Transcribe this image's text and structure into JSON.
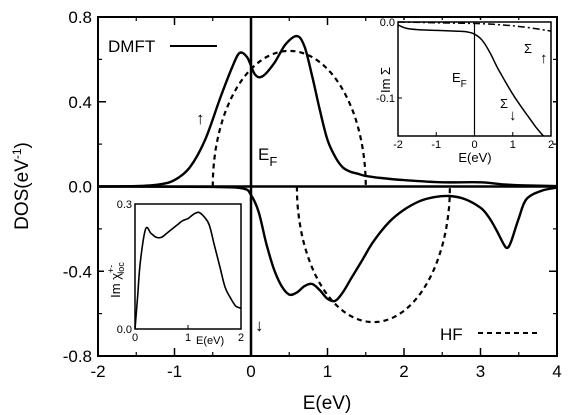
{
  "chart_data": {
    "type": "line",
    "xlabel": "E(eV)",
    "ylabel": "DOS(eV",
    "ylabel_sup": "-1",
    "ylabel_close": ")",
    "xlim": [
      -2,
      4
    ],
    "ylim": [
      -0.8,
      0.8
    ],
    "xticks": [
      "-2",
      "-1",
      "0",
      "1",
      "2",
      "3",
      "4"
    ],
    "yticks": [
      "-0.8",
      "-0.4",
      "0.0",
      "0.4",
      "0.8"
    ],
    "fermi_label": "E",
    "fermi_sub": "F",
    "legend": [
      {
        "label": "DMFT",
        "style": "solid"
      },
      {
        "label": "HF",
        "style": "dashed"
      }
    ],
    "spin_up_arrow": "↑",
    "spin_down_arrow": "↓",
    "series": [
      {
        "name": "DMFT",
        "spin": "up",
        "x": [
          -2.0,
          -1.5,
          -1.2,
          -1.0,
          -0.8,
          -0.6,
          -0.4,
          -0.25,
          -0.15,
          -0.05,
          0.05,
          0.15,
          0.3,
          0.45,
          0.6,
          0.7,
          0.8,
          0.9,
          1.0,
          1.1,
          1.2,
          1.3,
          1.4,
          1.5,
          1.7,
          2.0,
          2.5,
          3.0,
          3.3,
          3.6,
          4.0
        ],
        "y": [
          0.0,
          0.002,
          0.01,
          0.03,
          0.09,
          0.22,
          0.42,
          0.56,
          0.63,
          0.61,
          0.53,
          0.52,
          0.58,
          0.67,
          0.71,
          0.66,
          0.52,
          0.36,
          0.22,
          0.14,
          0.09,
          0.07,
          0.06,
          0.05,
          0.04,
          0.03,
          0.02,
          0.02,
          0.01,
          0.005,
          0.002
        ]
      },
      {
        "name": "DMFT",
        "spin": "down",
        "x": [
          -2.0,
          -0.5,
          -0.1,
          0.0,
          0.1,
          0.2,
          0.3,
          0.4,
          0.5,
          0.6,
          0.7,
          0.8,
          0.9,
          1.0,
          1.1,
          1.2,
          1.3,
          1.45,
          1.6,
          1.8,
          2.0,
          2.2,
          2.4,
          2.6,
          2.8,
          3.0,
          3.1,
          3.2,
          3.3,
          3.35,
          3.4,
          3.5,
          3.6,
          3.8,
          4.0
        ],
        "y": [
          0.0,
          -0.002,
          -0.01,
          -0.04,
          -0.12,
          -0.27,
          -0.39,
          -0.47,
          -0.51,
          -0.5,
          -0.47,
          -0.46,
          -0.49,
          -0.53,
          -0.54,
          -0.5,
          -0.44,
          -0.35,
          -0.26,
          -0.17,
          -0.11,
          -0.07,
          -0.05,
          -0.045,
          -0.06,
          -0.1,
          -0.14,
          -0.2,
          -0.27,
          -0.29,
          -0.26,
          -0.15,
          -0.06,
          -0.02,
          -0.005
        ]
      },
      {
        "name": "HF",
        "spin": "up",
        "shape": "semi-ellipse",
        "center": 0.5,
        "halfwidth": 1.0,
        "height": 0.64
      },
      {
        "name": "HF",
        "spin": "down",
        "shape": "semi-ellipse",
        "center": 1.6,
        "halfwidth": 1.0,
        "height": -0.64
      }
    ],
    "inset_sigma": {
      "type": "line",
      "ylabel": "Im Σ",
      "xlabel": "E(eV)",
      "xlim": [
        -2,
        2
      ],
      "ylim": [
        -0.15,
        0.0
      ],
      "xticks": [
        "-2",
        "-1",
        "0",
        "1",
        "2"
      ],
      "yticks": [
        "0.0",
        "-0.1"
      ],
      "fermi_label": "E",
      "fermi_sub": "F",
      "label_up": "Σ",
      "label_up_arrow": "↑",
      "label_down": "Σ",
      "label_down_arrow": "↓",
      "series": [
        {
          "name": "Σ↑",
          "style": "dash-dot",
          "x": [
            -2.0,
            -1.0,
            0.0,
            0.5,
            1.0,
            1.5,
            2.0
          ],
          "y": [
            0.0,
            -0.001,
            -0.002,
            -0.003,
            -0.005,
            -0.008,
            -0.012
          ]
        },
        {
          "name": "Σ↓",
          "style": "solid",
          "x": [
            -2.0,
            -1.8,
            -1.5,
            -1.0,
            -0.5,
            -0.2,
            0.0,
            0.2,
            0.4,
            0.6,
            0.8,
            1.0,
            1.2,
            1.4,
            1.6,
            1.8
          ],
          "y": [
            -0.004,
            -0.008,
            -0.01,
            -0.011,
            -0.012,
            -0.013,
            -0.016,
            -0.024,
            -0.04,
            -0.06,
            -0.078,
            -0.095,
            -0.11,
            -0.124,
            -0.138,
            -0.15
          ]
        }
      ]
    },
    "inset_chi": {
      "type": "line",
      "ylabel": "Im χ",
      "ylabel_sup": "+-",
      "ylabel_sub": "loc",
      "xlabel": "E(eV)",
      "xlim": [
        0,
        2
      ],
      "ylim": [
        0.0,
        0.3
      ],
      "xticks": [
        "0",
        "1",
        "2"
      ],
      "yticks": [
        "0.0",
        "0.3"
      ],
      "series": [
        {
          "name": "chi",
          "x": [
            0.0,
            0.05,
            0.1,
            0.2,
            0.3,
            0.4,
            0.5,
            0.6,
            0.7,
            0.8,
            0.9,
            1.0,
            1.1,
            1.2,
            1.3,
            1.4,
            1.5,
            1.6,
            1.7,
            1.8,
            1.9,
            2.0
          ],
          "y": [
            0.0,
            0.08,
            0.16,
            0.24,
            0.23,
            0.22,
            0.22,
            0.23,
            0.24,
            0.25,
            0.26,
            0.265,
            0.275,
            0.28,
            0.27,
            0.25,
            0.2,
            0.15,
            0.1,
            0.075,
            0.055,
            0.05
          ]
        }
      ]
    }
  }
}
